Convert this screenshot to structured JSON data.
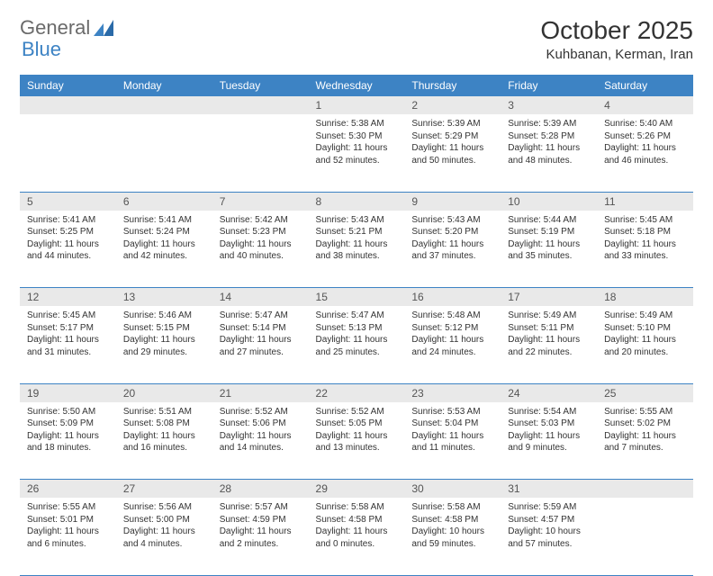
{
  "logo": {
    "text_a": "General",
    "text_b": "Blue"
  },
  "title": "October 2025",
  "location": "Kuhbanan, Kerman, Iran",
  "colors": {
    "header_bg": "#3d83c4",
    "header_text": "#ffffff",
    "daynum_bg": "#e9e9e9",
    "rule": "#3d83c4",
    "page_bg": "#ffffff"
  },
  "weekdays": [
    "Sunday",
    "Monday",
    "Tuesday",
    "Wednesday",
    "Thursday",
    "Friday",
    "Saturday"
  ],
  "weeks": [
    [
      null,
      null,
      null,
      {
        "n": "1",
        "sr": "Sunrise: 5:38 AM",
        "ss": "Sunset: 5:30 PM",
        "d1": "Daylight: 11 hours",
        "d2": "and 52 minutes."
      },
      {
        "n": "2",
        "sr": "Sunrise: 5:39 AM",
        "ss": "Sunset: 5:29 PM",
        "d1": "Daylight: 11 hours",
        "d2": "and 50 minutes."
      },
      {
        "n": "3",
        "sr": "Sunrise: 5:39 AM",
        "ss": "Sunset: 5:28 PM",
        "d1": "Daylight: 11 hours",
        "d2": "and 48 minutes."
      },
      {
        "n": "4",
        "sr": "Sunrise: 5:40 AM",
        "ss": "Sunset: 5:26 PM",
        "d1": "Daylight: 11 hours",
        "d2": "and 46 minutes."
      }
    ],
    [
      {
        "n": "5",
        "sr": "Sunrise: 5:41 AM",
        "ss": "Sunset: 5:25 PM",
        "d1": "Daylight: 11 hours",
        "d2": "and 44 minutes."
      },
      {
        "n": "6",
        "sr": "Sunrise: 5:41 AM",
        "ss": "Sunset: 5:24 PM",
        "d1": "Daylight: 11 hours",
        "d2": "and 42 minutes."
      },
      {
        "n": "7",
        "sr": "Sunrise: 5:42 AM",
        "ss": "Sunset: 5:23 PM",
        "d1": "Daylight: 11 hours",
        "d2": "and 40 minutes."
      },
      {
        "n": "8",
        "sr": "Sunrise: 5:43 AM",
        "ss": "Sunset: 5:21 PM",
        "d1": "Daylight: 11 hours",
        "d2": "and 38 minutes."
      },
      {
        "n": "9",
        "sr": "Sunrise: 5:43 AM",
        "ss": "Sunset: 5:20 PM",
        "d1": "Daylight: 11 hours",
        "d2": "and 37 minutes."
      },
      {
        "n": "10",
        "sr": "Sunrise: 5:44 AM",
        "ss": "Sunset: 5:19 PM",
        "d1": "Daylight: 11 hours",
        "d2": "and 35 minutes."
      },
      {
        "n": "11",
        "sr": "Sunrise: 5:45 AM",
        "ss": "Sunset: 5:18 PM",
        "d1": "Daylight: 11 hours",
        "d2": "and 33 minutes."
      }
    ],
    [
      {
        "n": "12",
        "sr": "Sunrise: 5:45 AM",
        "ss": "Sunset: 5:17 PM",
        "d1": "Daylight: 11 hours",
        "d2": "and 31 minutes."
      },
      {
        "n": "13",
        "sr": "Sunrise: 5:46 AM",
        "ss": "Sunset: 5:15 PM",
        "d1": "Daylight: 11 hours",
        "d2": "and 29 minutes."
      },
      {
        "n": "14",
        "sr": "Sunrise: 5:47 AM",
        "ss": "Sunset: 5:14 PM",
        "d1": "Daylight: 11 hours",
        "d2": "and 27 minutes."
      },
      {
        "n": "15",
        "sr": "Sunrise: 5:47 AM",
        "ss": "Sunset: 5:13 PM",
        "d1": "Daylight: 11 hours",
        "d2": "and 25 minutes."
      },
      {
        "n": "16",
        "sr": "Sunrise: 5:48 AM",
        "ss": "Sunset: 5:12 PM",
        "d1": "Daylight: 11 hours",
        "d2": "and 24 minutes."
      },
      {
        "n": "17",
        "sr": "Sunrise: 5:49 AM",
        "ss": "Sunset: 5:11 PM",
        "d1": "Daylight: 11 hours",
        "d2": "and 22 minutes."
      },
      {
        "n": "18",
        "sr": "Sunrise: 5:49 AM",
        "ss": "Sunset: 5:10 PM",
        "d1": "Daylight: 11 hours",
        "d2": "and 20 minutes."
      }
    ],
    [
      {
        "n": "19",
        "sr": "Sunrise: 5:50 AM",
        "ss": "Sunset: 5:09 PM",
        "d1": "Daylight: 11 hours",
        "d2": "and 18 minutes."
      },
      {
        "n": "20",
        "sr": "Sunrise: 5:51 AM",
        "ss": "Sunset: 5:08 PM",
        "d1": "Daylight: 11 hours",
        "d2": "and 16 minutes."
      },
      {
        "n": "21",
        "sr": "Sunrise: 5:52 AM",
        "ss": "Sunset: 5:06 PM",
        "d1": "Daylight: 11 hours",
        "d2": "and 14 minutes."
      },
      {
        "n": "22",
        "sr": "Sunrise: 5:52 AM",
        "ss": "Sunset: 5:05 PM",
        "d1": "Daylight: 11 hours",
        "d2": "and 13 minutes."
      },
      {
        "n": "23",
        "sr": "Sunrise: 5:53 AM",
        "ss": "Sunset: 5:04 PM",
        "d1": "Daylight: 11 hours",
        "d2": "and 11 minutes."
      },
      {
        "n": "24",
        "sr": "Sunrise: 5:54 AM",
        "ss": "Sunset: 5:03 PM",
        "d1": "Daylight: 11 hours",
        "d2": "and 9 minutes."
      },
      {
        "n": "25",
        "sr": "Sunrise: 5:55 AM",
        "ss": "Sunset: 5:02 PM",
        "d1": "Daylight: 11 hours",
        "d2": "and 7 minutes."
      }
    ],
    [
      {
        "n": "26",
        "sr": "Sunrise: 5:55 AM",
        "ss": "Sunset: 5:01 PM",
        "d1": "Daylight: 11 hours",
        "d2": "and 6 minutes."
      },
      {
        "n": "27",
        "sr": "Sunrise: 5:56 AM",
        "ss": "Sunset: 5:00 PM",
        "d1": "Daylight: 11 hours",
        "d2": "and 4 minutes."
      },
      {
        "n": "28",
        "sr": "Sunrise: 5:57 AM",
        "ss": "Sunset: 4:59 PM",
        "d1": "Daylight: 11 hours",
        "d2": "and 2 minutes."
      },
      {
        "n": "29",
        "sr": "Sunrise: 5:58 AM",
        "ss": "Sunset: 4:58 PM",
        "d1": "Daylight: 11 hours",
        "d2": "and 0 minutes."
      },
      {
        "n": "30",
        "sr": "Sunrise: 5:58 AM",
        "ss": "Sunset: 4:58 PM",
        "d1": "Daylight: 10 hours",
        "d2": "and 59 minutes."
      },
      {
        "n": "31",
        "sr": "Sunrise: 5:59 AM",
        "ss": "Sunset: 4:57 PM",
        "d1": "Daylight: 10 hours",
        "d2": "and 57 minutes."
      },
      null
    ]
  ]
}
